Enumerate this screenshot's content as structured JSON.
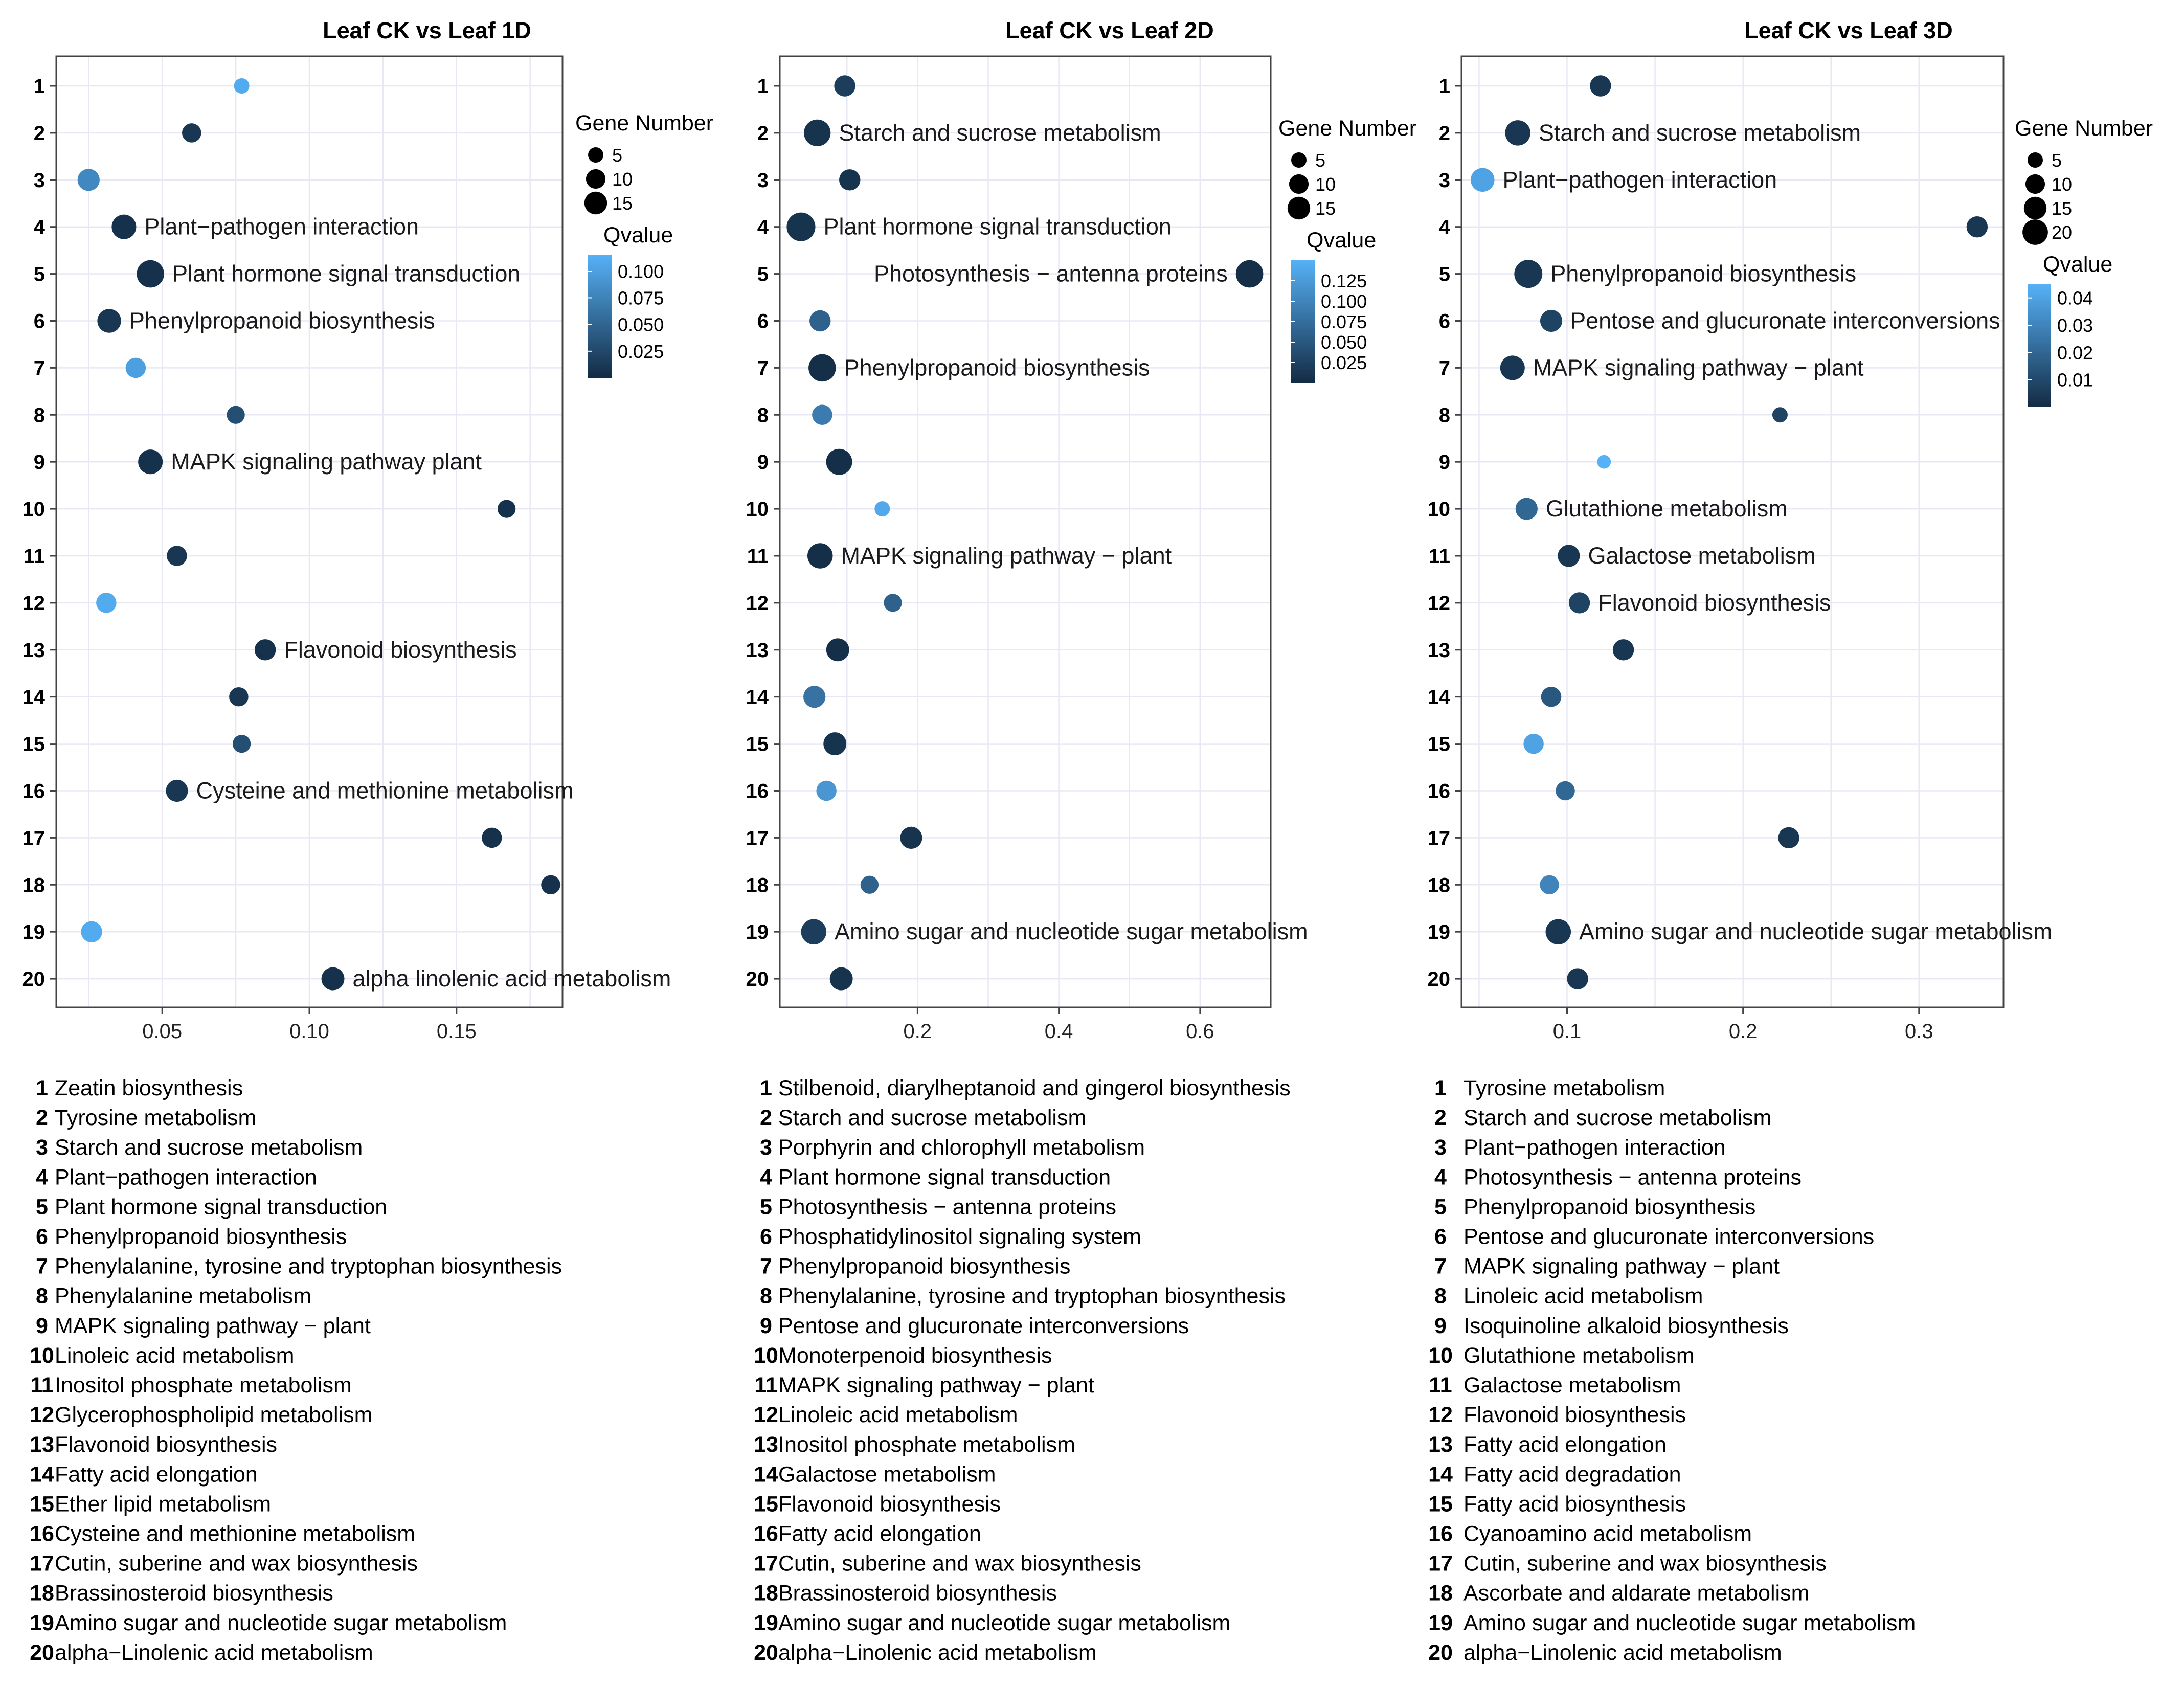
{
  "chart_data": [
    {
      "type": "scatter",
      "title": "Leaf CK vs Leaf 1D",
      "xlabel": "",
      "ylabel": "",
      "xlim": [
        0.014,
        0.186
      ],
      "xticks": [
        "0.05",
        "0.10",
        "0.15"
      ],
      "xtick_values": [
        0.05,
        0.1,
        0.15
      ],
      "categories": [
        "1",
        "2",
        "3",
        "4",
        "5",
        "6",
        "7",
        "8",
        "9",
        "10",
        "11",
        "12",
        "13",
        "14",
        "15",
        "16",
        "17",
        "18",
        "19",
        "20"
      ],
      "x": [
        0.077,
        0.06,
        0.025,
        0.037,
        0.046,
        0.032,
        0.041,
        0.075,
        0.046,
        0.167,
        0.055,
        0.031,
        0.085,
        0.076,
        0.077,
        0.055,
        0.162,
        0.182,
        0.026,
        0.108
      ],
      "size": [
        3,
        6,
        9,
        12,
        16,
        11,
        7,
        5,
        12,
        5,
        7,
        7,
        8,
        6,
        5,
        9,
        7,
        6,
        8,
        10
      ],
      "qvalue": [
        0.11,
        0.01,
        0.08,
        0.005,
        0.005,
        0.01,
        0.1,
        0.03,
        0.005,
        0.005,
        0.01,
        0.11,
        0.005,
        0.01,
        0.03,
        0.01,
        0.005,
        0.005,
        0.11,
        0.005
      ],
      "annotations": [
        {
          "row": "4",
          "label": "Plant−pathogen interaction"
        },
        {
          "row": "5",
          "label": "Plant hormone signal transduction"
        },
        {
          "row": "6",
          "label": "Phenylpropanoid biosynthesis"
        },
        {
          "row": "9",
          "label": "MAPK signaling pathway plant"
        },
        {
          "row": "13",
          "label": "Flavonoid biosynthesis"
        },
        {
          "row": "16",
          "label": "Cysteine and methionine metabolism"
        },
        {
          "row": "20",
          "label": "alpha linolenic acid metabolism"
        }
      ],
      "size_legend": {
        "title": "Gene Number",
        "labels": [
          "5",
          "10",
          "15"
        ],
        "values": [
          5,
          10,
          15
        ]
      },
      "color_legend": {
        "title": "Qvalue",
        "labels": [
          "0.100",
          "0.075",
          "0.050",
          "0.025"
        ],
        "values": [
          0.1,
          0.075,
          0.05,
          0.025
        ],
        "range": [
          0.0,
          0.115
        ]
      },
      "pathways": [
        {
          "num": "1",
          "name": "Zeatin biosynthesis"
        },
        {
          "num": "2",
          "name": "Tyrosine metabolism"
        },
        {
          "num": "3",
          "name": "Starch and sucrose metabolism"
        },
        {
          "num": "4",
          "name": "Plant−pathogen interaction"
        },
        {
          "num": "5",
          "name": "Plant hormone signal transduction"
        },
        {
          "num": "6",
          "name": "Phenylpropanoid biosynthesis"
        },
        {
          "num": "7",
          "name": "Phenylalanine, tyrosine and tryptophan biosynthesis"
        },
        {
          "num": "8",
          "name": "Phenylalanine metabolism"
        },
        {
          "num": "9",
          "name": "MAPK signaling pathway − plant"
        },
        {
          "num": "10",
          "name": "Linoleic acid metabolism"
        },
        {
          "num": "11",
          "name": "Inositol phosphate metabolism"
        },
        {
          "num": "12",
          "name": "Glycerophospholipid metabolism"
        },
        {
          "num": "13",
          "name": "Flavonoid biosynthesis"
        },
        {
          "num": "14",
          "name": "Fatty acid elongation"
        },
        {
          "num": "15",
          "name": "Ether lipid metabolism"
        },
        {
          "num": "16",
          "name": "Cysteine and methionine metabolism"
        },
        {
          "num": "17",
          "name": "Cutin, suberine and wax biosynthesis"
        },
        {
          "num": "18",
          "name": "Brassinosteroid biosynthesis"
        },
        {
          "num": "19",
          "name": "Amino sugar and nucleotide sugar metabolism"
        },
        {
          "num": "20",
          "name": "alpha−Linolenic acid metabolism"
        }
      ]
    },
    {
      "type": "scatter",
      "title": "Leaf CK vs Leaf 2D",
      "xlabel": "",
      "ylabel": "",
      "xlim": [
        0.005,
        0.7
      ],
      "xticks": [
        "0.2",
        "0.4",
        "0.6"
      ],
      "xtick_values": [
        0.2,
        0.4,
        0.6
      ],
      "categories": [
        "1",
        "2",
        "3",
        "4",
        "5",
        "6",
        "7",
        "8",
        "9",
        "10",
        "11",
        "12",
        "13",
        "14",
        "15",
        "16",
        "17",
        "18",
        "19",
        "20"
      ],
      "x": [
        0.097,
        0.058,
        0.104,
        0.035,
        0.67,
        0.062,
        0.065,
        0.065,
        0.089,
        0.15,
        0.062,
        0.165,
        0.087,
        0.054,
        0.083,
        0.071,
        0.191,
        0.132,
        0.053,
        0.092
      ],
      "size": [
        8,
        15,
        8,
        18,
        16,
        8,
        16,
        7,
        14,
        3,
        13,
        5,
        10,
        9,
        10,
        7,
        9,
        5,
        13,
        10
      ],
      "qvalue": [
        0.02,
        0.01,
        0.01,
        0.01,
        0.005,
        0.06,
        0.005,
        0.09,
        0.005,
        0.14,
        0.005,
        0.06,
        0.005,
        0.08,
        0.01,
        0.12,
        0.01,
        0.06,
        0.02,
        0.01
      ],
      "annotations": [
        {
          "row": "2",
          "label": "Starch and sucrose metabolism"
        },
        {
          "row": "4",
          "label": "Plant hormone signal transduction"
        },
        {
          "row": "5",
          "label": "Photosynthesis − antenna proteins"
        },
        {
          "row": "7",
          "label": "Phenylpropanoid biosynthesis"
        },
        {
          "row": "11",
          "label": "MAPK signaling pathway − plant"
        },
        {
          "row": "19",
          "label": "Amino sugar and nucleotide sugar metabolism"
        }
      ],
      "size_legend": {
        "title": "Gene Number",
        "labels": [
          "5",
          "10",
          "15"
        ],
        "values": [
          5,
          10,
          15
        ]
      },
      "color_legend": {
        "title": "Qvalue",
        "labels": [
          "0.125",
          "0.100",
          "0.075",
          "0.050",
          "0.025"
        ],
        "values": [
          0.125,
          0.1,
          0.075,
          0.05,
          0.025
        ],
        "range": [
          0.0,
          0.15
        ]
      },
      "pathways": [
        {
          "num": "1",
          "name": "Stilbenoid, diarylheptanoid and gingerol biosynthesis"
        },
        {
          "num": "2",
          "name": "Starch and sucrose metabolism"
        },
        {
          "num": "3",
          "name": "Porphyrin and chlorophyll metabolism"
        },
        {
          "num": "4",
          "name": "Plant hormone signal transduction"
        },
        {
          "num": "5",
          "name": "Photosynthesis − antenna proteins"
        },
        {
          "num": "6",
          "name": "Phosphatidylinositol signaling system"
        },
        {
          "num": "7",
          "name": "Phenylpropanoid biosynthesis"
        },
        {
          "num": "8",
          "name": "Phenylalanine, tyrosine and tryptophan biosynthesis"
        },
        {
          "num": "9",
          "name": "Pentose and glucuronate interconversions"
        },
        {
          "num": "10",
          "name": "Monoterpenoid biosynthesis"
        },
        {
          "num": "11",
          "name": "MAPK signaling pathway − plant"
        },
        {
          "num": "12",
          "name": "Linoleic acid metabolism"
        },
        {
          "num": "13",
          "name": "Inositol phosphate metabolism"
        },
        {
          "num": "14",
          "name": "Galactose metabolism"
        },
        {
          "num": "15",
          "name": "Flavonoid biosynthesis"
        },
        {
          "num": "16",
          "name": "Fatty acid elongation"
        },
        {
          "num": "17",
          "name": "Cutin, suberine and wax biosynthesis"
        },
        {
          "num": "18",
          "name": "Brassinosteroid biosynthesis"
        },
        {
          "num": "19",
          "name": "Amino sugar and nucleotide sugar metabolism"
        },
        {
          "num": "20",
          "name": "alpha−Linolenic acid metabolism"
        }
      ]
    },
    {
      "type": "scatter",
      "title": "Leaf CK vs Leaf 3D",
      "xlabel": "",
      "ylabel": "",
      "xlim": [
        0.04,
        0.348
      ],
      "xticks": [
        "0.1",
        "0.2",
        "0.3"
      ],
      "xtick_values": [
        0.1,
        0.2,
        0.3
      ],
      "categories": [
        "1",
        "2",
        "3",
        "4",
        "5",
        "6",
        "7",
        "8",
        "9",
        "10",
        "11",
        "12",
        "13",
        "14",
        "15",
        "16",
        "17",
        "18",
        "19",
        "20"
      ],
      "x": [
        0.119,
        0.072,
        0.052,
        0.333,
        0.078,
        0.091,
        0.069,
        0.221,
        0.121,
        0.077,
        0.101,
        0.107,
        0.132,
        0.091,
        0.081,
        0.099,
        0.226,
        0.09,
        0.095,
        0.106
      ],
      "size": [
        8,
        13,
        11,
        8,
        17,
        9,
        12,
        3,
        2,
        9,
        9,
        8,
        8,
        7,
        7,
        6,
        8,
        6,
        13,
        8
      ],
      "qvalue": [
        0.004,
        0.004,
        0.04,
        0.004,
        0.004,
        0.008,
        0.004,
        0.008,
        0.045,
        0.02,
        0.004,
        0.008,
        0.004,
        0.015,
        0.04,
        0.02,
        0.004,
        0.03,
        0.004,
        0.004
      ],
      "annotations": [
        {
          "row": "2",
          "label": "Starch and sucrose metabolism"
        },
        {
          "row": "3",
          "label": "Plant−pathogen interaction"
        },
        {
          "row": "5",
          "label": "Phenylpropanoid biosynthesis"
        },
        {
          "row": "6",
          "label": "Pentose and glucuronate interconversions"
        },
        {
          "row": "7",
          "label": "MAPK signaling pathway − plant"
        },
        {
          "row": "10",
          "label": "Glutathione metabolism"
        },
        {
          "row": "11",
          "label": "Galactose metabolism"
        },
        {
          "row": "12",
          "label": "Flavonoid biosynthesis"
        },
        {
          "row": "19",
          "label": "Amino sugar and nucleotide sugar metabolism"
        }
      ],
      "size_legend": {
        "title": "Gene Number",
        "labels": [
          "5",
          "10",
          "15",
          "20"
        ],
        "values": [
          5,
          10,
          15,
          20
        ]
      },
      "color_legend": {
        "title": "Qvalue",
        "labels": [
          "0.04",
          "0.03",
          "0.02",
          "0.01"
        ],
        "values": [
          0.04,
          0.03,
          0.02,
          0.01
        ],
        "range": [
          0.0,
          0.045
        ]
      },
      "pathways": [
        {
          "num": "1",
          "name": "Tyrosine metabolism"
        },
        {
          "num": "2",
          "name": "Starch and sucrose metabolism"
        },
        {
          "num": "3",
          "name": "Plant−pathogen interaction"
        },
        {
          "num": "4",
          "name": "Photosynthesis − antenna proteins"
        },
        {
          "num": "5",
          "name": "Phenylpropanoid biosynthesis"
        },
        {
          "num": "6",
          "name": "Pentose and glucuronate interconversions"
        },
        {
          "num": "7",
          "name": "MAPK signaling pathway − plant"
        },
        {
          "num": "8",
          "name": "Linoleic acid metabolism"
        },
        {
          "num": "9",
          "name": "Isoquinoline alkaloid biosynthesis"
        },
        {
          "num": "10",
          "name": "Glutathione metabolism"
        },
        {
          "num": "11",
          "name": "Galactose metabolism"
        },
        {
          "num": "12",
          "name": "Flavonoid biosynthesis"
        },
        {
          "num": "13",
          "name": "Fatty acid elongation"
        },
        {
          "num": "14",
          "name": "Fatty acid degradation"
        },
        {
          "num": "15",
          "name": "Fatty acid biosynthesis"
        },
        {
          "num": "16",
          "name": "Cyanoamino acid metabolism"
        },
        {
          "num": "17",
          "name": "Cutin, suberine and wax biosynthesis"
        },
        {
          "num": "18",
          "name": "Ascorbate and aldarate metabolism"
        },
        {
          "num": "19",
          "name": "Amino sugar and nucleotide sugar metabolism"
        },
        {
          "num": "20",
          "name": "alpha−Linolenic acid metabolism"
        }
      ]
    }
  ],
  "colors": {
    "dark": "#132B43",
    "light": "#56B1F7",
    "grid": "#e8e8f4",
    "frame": "#444444",
    "text": "#1a1a1a"
  }
}
